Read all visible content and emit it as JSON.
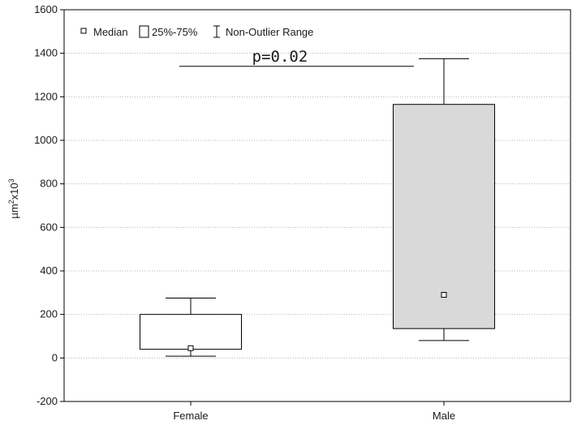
{
  "chart_data": {
    "type": "boxplot",
    "ylabel": "µm",
    "ylabel_sup1": "2",
    "ylabel_mid": "x10",
    "ylabel_sup2": "3",
    "ylim": [
      -200,
      1600
    ],
    "yticks": [
      -200,
      0,
      200,
      400,
      600,
      800,
      1000,
      1200,
      1400,
      1600
    ],
    "grid": true,
    "legend": {
      "placement": "top-left",
      "entries": [
        "Median",
        "25%-75%",
        "Non-Outlier Range"
      ]
    },
    "categories": [
      "Female",
      "Male"
    ],
    "boxes": [
      {
        "category": "Female",
        "median": 45,
        "q1": 40,
        "q3": 200,
        "min": 8,
        "max": 275,
        "fill": "#ffffff"
      },
      {
        "category": "Male",
        "median": 290,
        "q1": 135,
        "q3": 1165,
        "min": 80,
        "max": 1375,
        "fill": "#d9d9d9"
      }
    ],
    "annotation": {
      "text": "p=0.02",
      "y": 1340
    }
  }
}
